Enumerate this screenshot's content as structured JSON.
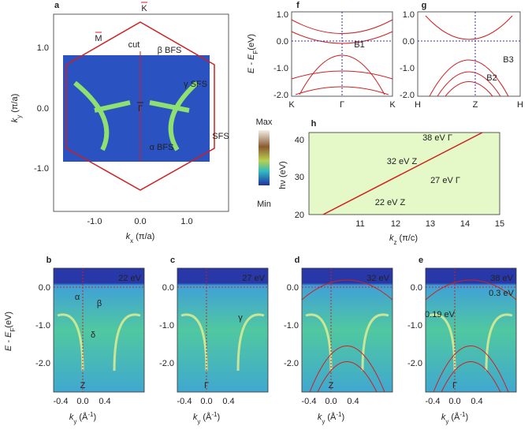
{
  "panel_a": {
    "letter": "a",
    "x_ticks": [
      "-1.0",
      "0.0",
      "1.0"
    ],
    "y_ticks": [
      "1.0",
      "0.0",
      "-1.0"
    ],
    "x_label": [
      "k",
      "x",
      " (π/a)"
    ],
    "y_label": [
      "k",
      "y",
      " (π/a)"
    ],
    "points": [
      "K",
      "M",
      "Γ"
    ],
    "annotations": [
      "cut",
      "β BFS",
      "γ SFS",
      "SFS",
      "α BFS"
    ],
    "colorbar": [
      "Max",
      "Min"
    ]
  },
  "panel_f": {
    "letter": "f",
    "y_ticks": [
      "1.0",
      "0.0",
      "-1.0",
      "-2.0"
    ],
    "x_ticks": [
      "K",
      "Γ",
      "K"
    ],
    "bands": [
      "B1"
    ]
  },
  "panel_g": {
    "letter": "g",
    "y_ticks": [
      "1.0",
      "0.0",
      "-1.0",
      "-2.0"
    ],
    "x_ticks": [
      "H",
      "Z",
      "H"
    ],
    "bands": [
      "B3",
      "B2"
    ]
  },
  "energy_label": [
    "E - E",
    "F",
    "(eV)"
  ],
  "panel_h": {
    "letter": "h",
    "y_ticks": [
      "40",
      "30",
      "20"
    ],
    "x_ticks": [
      "11",
      "12",
      "13",
      "14",
      "15"
    ],
    "x_label": [
      "k",
      "z",
      " (π/c)"
    ],
    "y_label": "hν (eV)",
    "annotations": [
      "38 eV  Γ",
      "32 eV  Z",
      "27 eV  Γ",
      "22 eV  Z"
    ]
  },
  "arpes": [
    {
      "letter": "b",
      "photon": "22 eV",
      "point": "Z",
      "annotations": [
        "α",
        "β",
        "δ"
      ]
    },
    {
      "letter": "c",
      "photon": "27 eV",
      "point": "Γ",
      "annotations": [
        "γ"
      ]
    },
    {
      "letter": "d",
      "photon": "32 eV",
      "point": "Z",
      "annotations": []
    },
    {
      "letter": "e",
      "photon": "38 eV",
      "point": "Γ",
      "annotations": [
        "0.19 eV",
        "0.3 eV"
      ]
    }
  ],
  "arpes_y_ticks": [
    "0.0",
    "-1.0",
    "-2.0"
  ],
  "arpes_x_ticks": [
    "-0.4",
    "0.0",
    "0.4"
  ],
  "arpes_x_label": [
    "k",
    "y",
    " (Å",
    "-1",
    ")"
  ]
}
